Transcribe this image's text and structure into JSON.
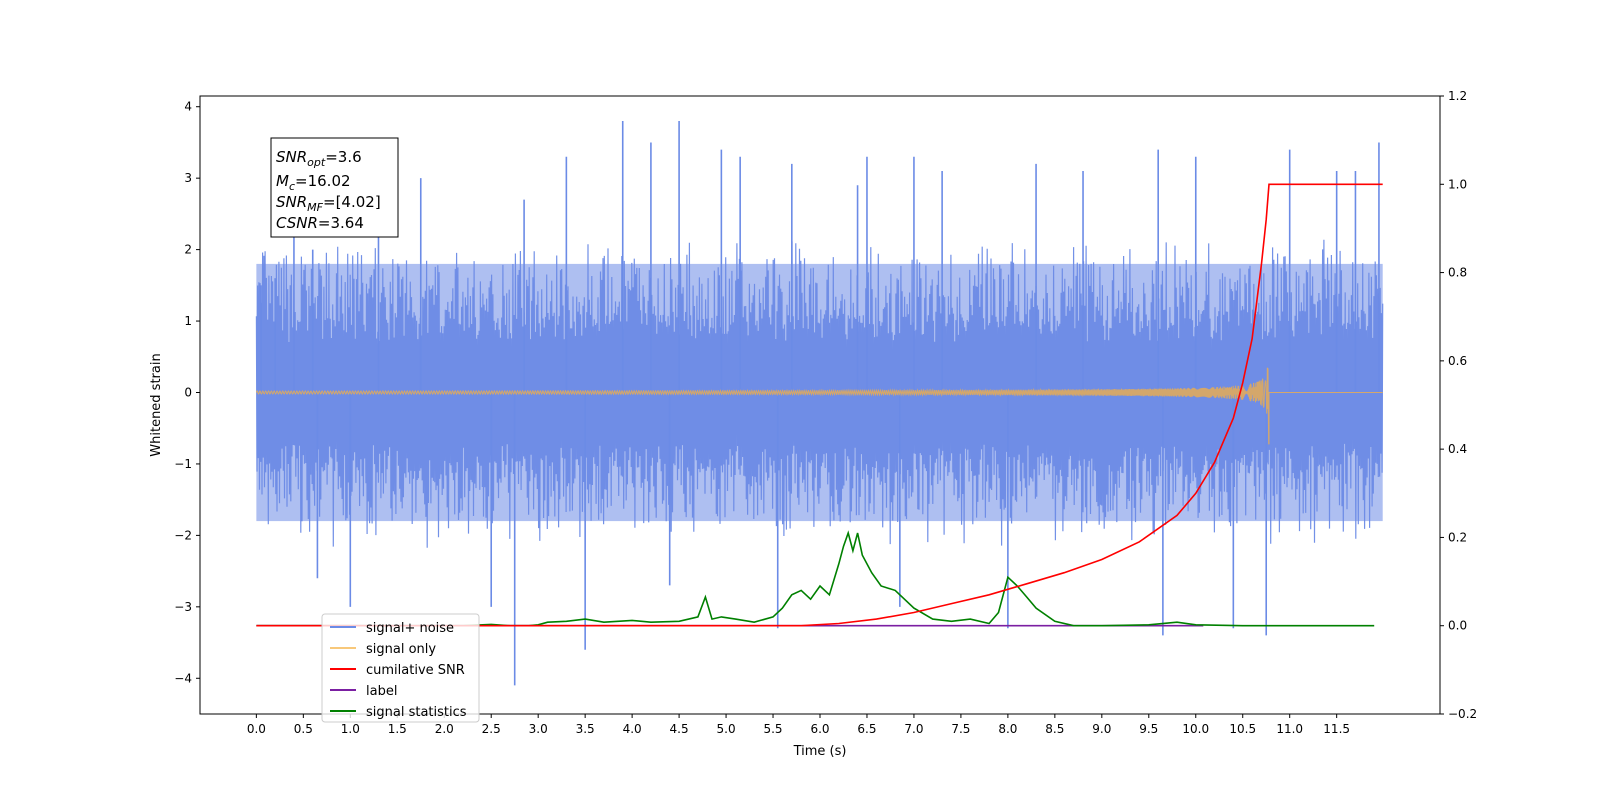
{
  "chart_data": {
    "type": "line",
    "title": "",
    "xlabel": "Time (s)",
    "ylabel": "Whitened strain",
    "xlim": [
      -0.6,
      12.6
    ],
    "ylim": [
      -4.5,
      4.15
    ],
    "y2lim": [
      -0.2,
      1.2
    ],
    "x_ticks": [
      "0.0",
      "0.5",
      "1.0",
      "1.5",
      "2.0",
      "2.5",
      "3.0",
      "3.5",
      "4.0",
      "4.5",
      "5.0",
      "5.5",
      "6.0",
      "6.5",
      "7.0",
      "7.5",
      "8.0",
      "8.5",
      "9.0",
      "9.5",
      "10.0",
      "10.5",
      "11.0",
      "11.5"
    ],
    "y_ticks": [
      "4",
      "3",
      "2",
      "1",
      "0",
      "−1",
      "−2",
      "−3",
      "−4"
    ],
    "y2_ticks": [
      "1.2",
      "1.0",
      "0.8",
      "0.6",
      "0.4",
      "0.2",
      "0.0",
      "−0.2"
    ],
    "grid": false,
    "legend_position": "lower-left",
    "annotation": {
      "snr_opt": {
        "base": "SNR",
        "sub": "opt",
        "value": "=3.6"
      },
      "mc": {
        "base": "M",
        "sub": "c",
        "value": "=16.02"
      },
      "snr_mf": {
        "base": "SNR",
        "sub": "MF",
        "value": "=[4.02]"
      },
      "csnr": {
        "base": "CSNR",
        "value": "=3.64"
      }
    },
    "series": [
      {
        "name": "signal+ noise",
        "color": "#6b8be6",
        "axis": "left",
        "x_range": [
          0.0,
          11.99
        ],
        "envelope": [
          1.8,
          -1.8
        ],
        "spikes": [
          [
            0.05,
            1.5
          ],
          [
            0.2,
            1.6
          ],
          [
            0.4,
            2.6
          ],
          [
            0.6,
            2.0
          ],
          [
            0.65,
            -2.6
          ],
          [
            1.0,
            -3.0
          ],
          [
            1.3,
            2.7
          ],
          [
            1.75,
            3.0
          ],
          [
            2.5,
            -3.0
          ],
          [
            2.75,
            -4.1
          ],
          [
            2.85,
            2.7
          ],
          [
            3.3,
            3.3
          ],
          [
            3.5,
            -3.6
          ],
          [
            3.9,
            3.8
          ],
          [
            4.2,
            3.5
          ],
          [
            4.4,
            -2.7
          ],
          [
            4.5,
            3.8
          ],
          [
            4.95,
            3.4
          ],
          [
            5.15,
            3.3
          ],
          [
            5.55,
            -3.3
          ],
          [
            5.7,
            3.2
          ],
          [
            6.4,
            2.9
          ],
          [
            6.5,
            3.3
          ],
          [
            6.85,
            -3.0
          ],
          [
            7.0,
            3.3
          ],
          [
            7.3,
            3.1
          ],
          [
            8.0,
            -3.3
          ],
          [
            8.3,
            3.2
          ],
          [
            8.8,
            3.1
          ],
          [
            9.6,
            3.4
          ],
          [
            9.65,
            -3.4
          ],
          [
            10.0,
            3.3
          ],
          [
            10.4,
            -3.3
          ],
          [
            10.75,
            -3.4
          ],
          [
            11.0,
            3.4
          ],
          [
            11.5,
            3.1
          ],
          [
            11.7,
            3.1
          ],
          [
            11.95,
            3.5
          ]
        ]
      },
      {
        "name": "signal only",
        "color": "#f5b041",
        "axis": "left",
        "x_range": [
          0.0,
          11.99
        ],
        "chirp_end": 10.78,
        "chirp_peak": 0.75
      },
      {
        "name": "cumilative SNR",
        "color": "#ff0000",
        "axis": "right",
        "x": [
          0.0,
          5.8,
          6.2,
          6.6,
          7.0,
          7.4,
          7.8,
          8.2,
          8.6,
          9.0,
          9.4,
          9.8,
          10.0,
          10.2,
          10.4,
          10.5,
          10.6,
          10.7,
          10.75,
          10.78,
          11.99
        ],
        "values": [
          0.0,
          0.0,
          0.005,
          0.015,
          0.03,
          0.05,
          0.07,
          0.095,
          0.12,
          0.15,
          0.19,
          0.25,
          0.3,
          0.37,
          0.47,
          0.55,
          0.65,
          0.82,
          0.92,
          1.0,
          1.0
        ]
      },
      {
        "name": "label",
        "color": "#7b1fa2",
        "axis": "right",
        "x": [
          0.0,
          10.08
        ],
        "values": [
          0.0,
          0.0
        ]
      },
      {
        "name": "signal statistics",
        "color": "#008000",
        "axis": "right",
        "x": [
          0.0,
          2.2,
          2.5,
          2.7,
          2.9,
          3.0,
          3.1,
          3.3,
          3.5,
          3.7,
          4.0,
          4.2,
          4.5,
          4.7,
          4.78,
          4.85,
          4.95,
          5.1,
          5.3,
          5.5,
          5.6,
          5.7,
          5.8,
          5.9,
          6.0,
          6.1,
          6.2,
          6.25,
          6.3,
          6.35,
          6.4,
          6.45,
          6.55,
          6.65,
          6.8,
          7.0,
          7.2,
          7.4,
          7.6,
          7.8,
          7.9,
          8.0,
          8.1,
          8.2,
          8.3,
          8.5,
          8.7,
          9.0,
          9.5,
          9.8,
          10.0,
          10.5,
          11.0,
          11.9
        ],
        "values": [
          0.0,
          0.0,
          0.003,
          0.0,
          0.0,
          0.002,
          0.008,
          0.01,
          0.015,
          0.008,
          0.012,
          0.008,
          0.01,
          0.02,
          0.065,
          0.015,
          0.02,
          0.015,
          0.008,
          0.02,
          0.04,
          0.07,
          0.08,
          0.06,
          0.09,
          0.07,
          0.14,
          0.18,
          0.21,
          0.17,
          0.21,
          0.16,
          0.12,
          0.09,
          0.08,
          0.04,
          0.015,
          0.01,
          0.015,
          0.005,
          0.03,
          0.11,
          0.09,
          0.065,
          0.04,
          0.01,
          0.0,
          0.0,
          0.002,
          0.008,
          0.002,
          0.0,
          0.0,
          0.0
        ]
      }
    ]
  }
}
